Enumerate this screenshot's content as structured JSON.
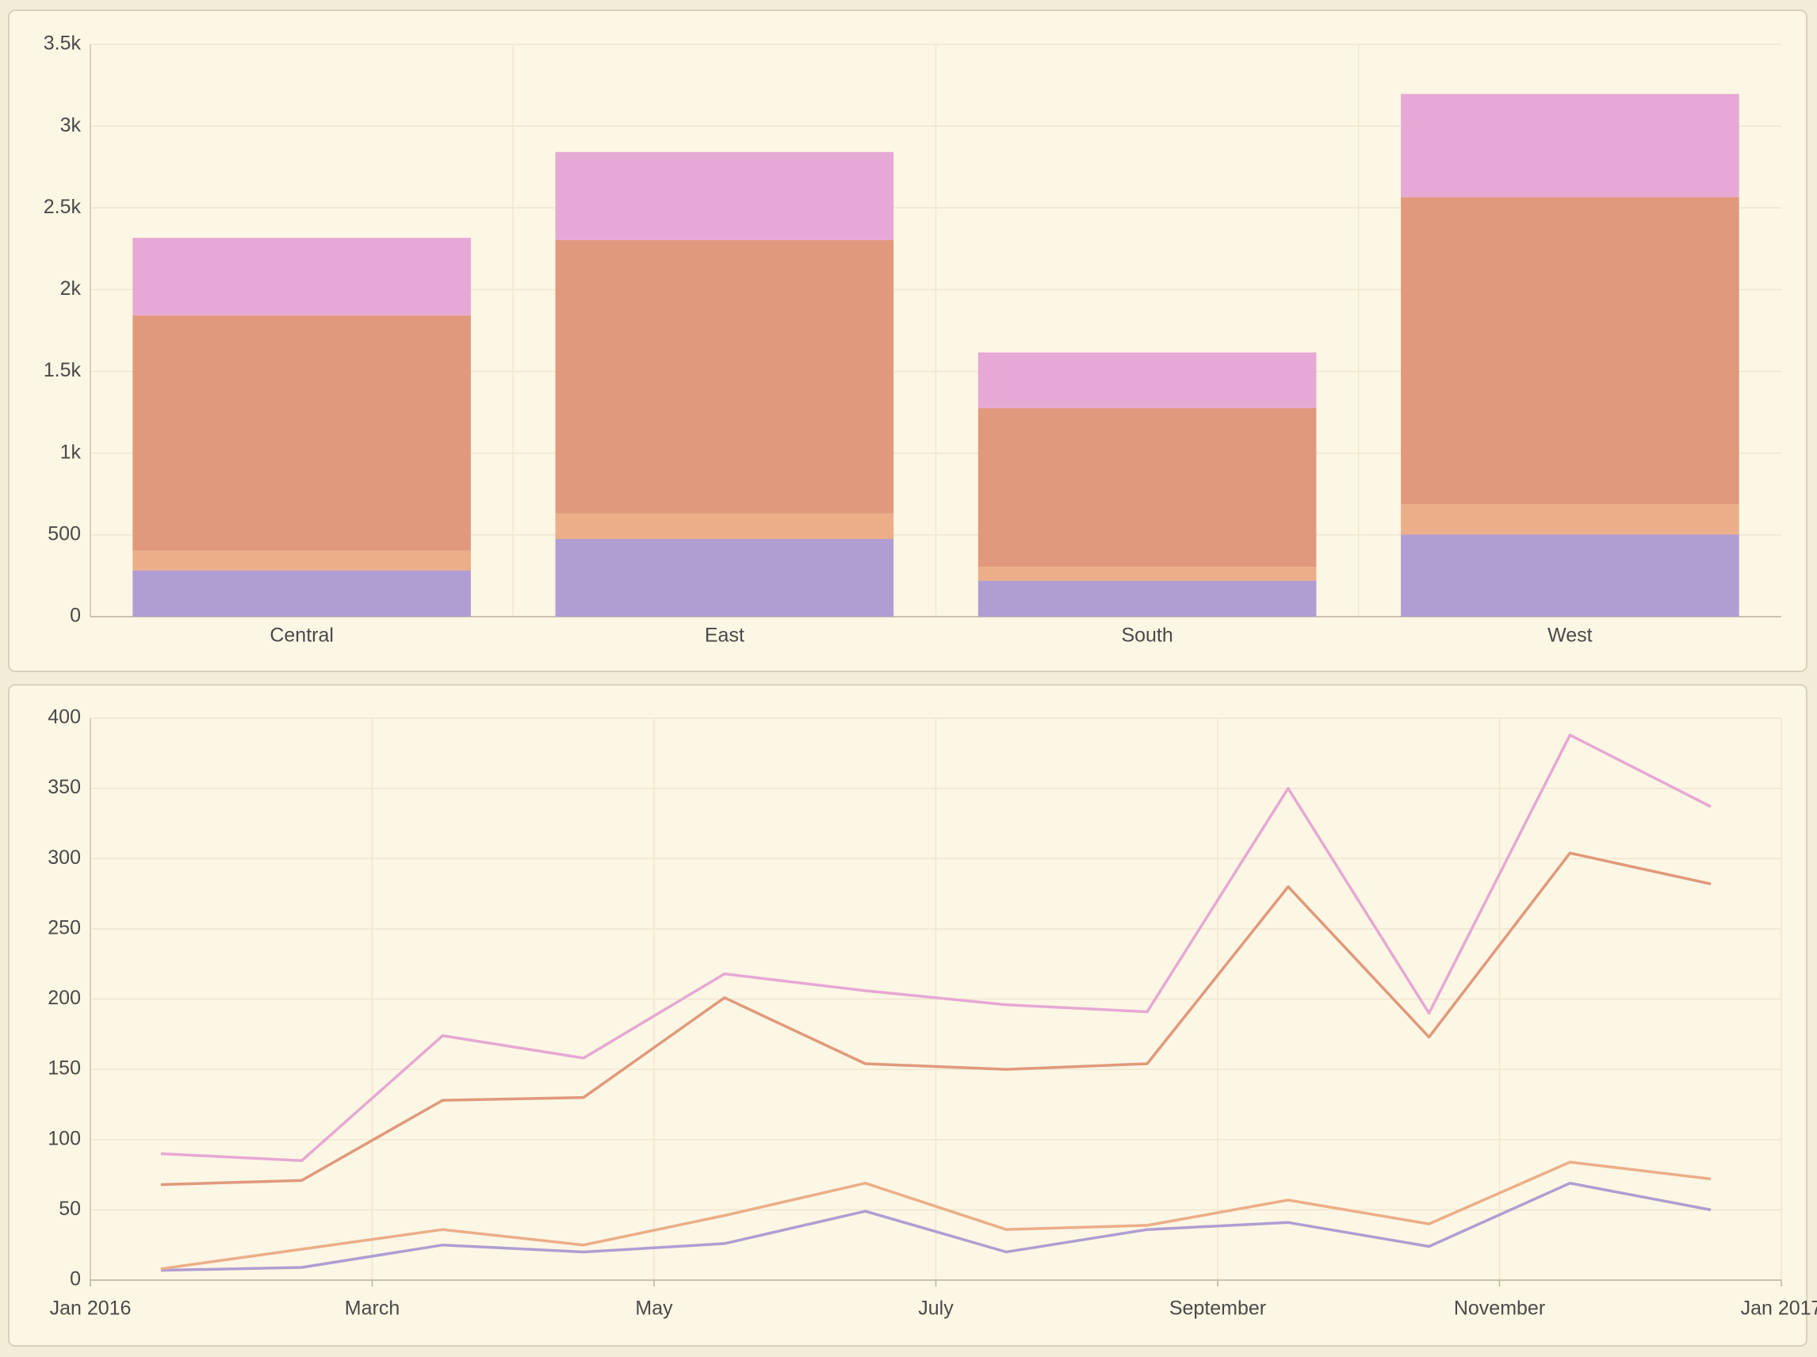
{
  "chart_data": [
    {
      "type": "bar",
      "stacked": true,
      "grid": true,
      "categories": [
        "Central",
        "East",
        "South",
        "West"
      ],
      "series": [
        {
          "color": "#b09dd2",
          "values": [
            283,
            475,
            220,
            503
          ]
        },
        {
          "color": "#ebae88",
          "values": [
            121,
            156,
            85,
            184
          ]
        },
        {
          "color": "#e0997c",
          "values": [
            1439,
            1672,
            971,
            1879
          ]
        },
        {
          "color": "#e6a8d4",
          "values": [
            474,
            539,
            340,
            631
          ]
        }
      ],
      "ylim": [
        0,
        3500
      ],
      "yticks": [
        0,
        500,
        {
          "value": 1000,
          "label": "1k"
        },
        {
          "value": 1500,
          "label": "1.5k"
        },
        {
          "value": 2000,
          "label": "2k"
        },
        {
          "value": 2500,
          "label": "2.5k"
        },
        {
          "value": 3000,
          "label": "3k"
        },
        {
          "value": 3500,
          "label": "3.5k"
        }
      ]
    },
    {
      "type": "line",
      "stacked": true,
      "grid": true,
      "x": [
        "2016-01",
        "2016-02",
        "2016-03",
        "2016-04",
        "2016-05",
        "2016-06",
        "2016-07",
        "2016-08",
        "2016-09",
        "2016-10",
        "2016-11",
        "2016-12"
      ],
      "series": [
        {
          "color": "#b09dd2",
          "values": [
            7,
            9,
            25,
            20,
            26,
            49,
            20,
            36,
            41,
            24,
            69,
            50
          ]
        },
        {
          "color": "#ebae88",
          "values": [
            1,
            13,
            11,
            5,
            20,
            20,
            16,
            3,
            16,
            16,
            15,
            22
          ]
        },
        {
          "color": "#e0997c",
          "values": [
            60,
            49,
            92,
            105,
            155,
            85,
            114,
            115,
            223,
            133,
            220,
            210
          ]
        },
        {
          "color": "#e6a8d4",
          "values": [
            22,
            14,
            46,
            28,
            17,
            52,
            46,
            37,
            70,
            17,
            84,
            55
          ]
        }
      ],
      "xlim": [
        "2016-01",
        "2017-01"
      ],
      "xticks": [
        {
          "value": "2016-01",
          "label": "Jan 2016"
        },
        {
          "value": "2016-03",
          "label": "March"
        },
        {
          "value": "2016-05",
          "label": "May"
        },
        {
          "value": "2016-07",
          "label": "July"
        },
        {
          "value": "2016-09",
          "label": "September"
        },
        {
          "value": "2016-11",
          "label": "November"
        },
        {
          "value": "2017-01",
          "label": "Jan 2017"
        }
      ],
      "ylim": [
        0,
        400
      ],
      "yticks": [
        0,
        50,
        100,
        150,
        200,
        250,
        300,
        350,
        400
      ]
    }
  ]
}
